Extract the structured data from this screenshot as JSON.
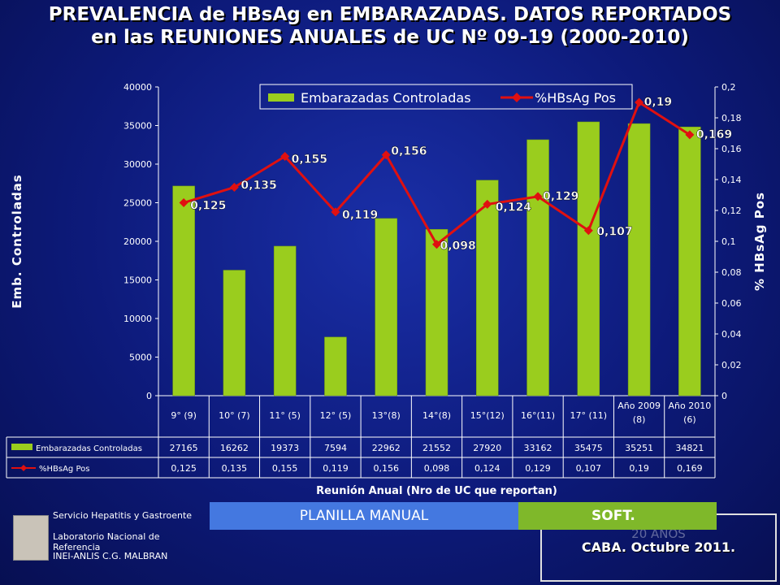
{
  "title_line1": "PREVALENCIA de HBsAg en EMBARAZADAS. DATOS REPORTADOS",
  "title_line2": "en las REUNIONES ANUALES de UC Nº 09-19  (2000-2010)",
  "colors": {
    "bar": "#9acd1e",
    "line": "#e01010",
    "background": "#0d1a7a"
  },
  "chart_data": {
    "type": "bar",
    "categories": [
      "9° (9)",
      "10° (7)",
      "11° (5)",
      "12° (5)",
      "13°(8)",
      "14°(8)",
      "15°(12)",
      "16°(11)",
      "17° (11)",
      "Año 2009 (8)",
      "Año 2010 (6)"
    ],
    "series": [
      {
        "name": "Embarazadas Controladas",
        "type": "bar",
        "axis": "left",
        "values": [
          27165,
          16262,
          19373,
          7594,
          22962,
          21552,
          27920,
          33162,
          35475,
          35251,
          34821
        ]
      },
      {
        "name": "%HBsAg Pos",
        "type": "line",
        "axis": "right",
        "values": [
          0.125,
          0.135,
          0.155,
          0.119,
          0.156,
          0.098,
          0.124,
          0.129,
          0.107,
          0.19,
          0.169
        ]
      }
    ],
    "data_labels": [
      "0,125",
      "0,135",
      "0,155",
      "0,119",
      "0,156",
      "0,098",
      "0,124",
      "0,129",
      "0,107",
      "0,19",
      "0,169"
    ],
    "table_values_bar": [
      "27165",
      "16262",
      "19373",
      "7594",
      "22962",
      "21552",
      "27920",
      "33162",
      "35475",
      "35251",
      "34821"
    ],
    "table_values_line": [
      "0,125",
      "0,135",
      "0,155",
      "0,119",
      "0,156",
      "0,098",
      "0,124",
      "0,129",
      "0,107",
      "0,19",
      "0,169"
    ],
    "xlabel": "Reunión Anual (Nro de UC que reportan)",
    "ylabel": "Emb. Controladas",
    "y2label": "% HBsAg Pos",
    "ylim": [
      0,
      40000
    ],
    "y2lim": [
      0,
      0.2
    ],
    "yticks": [
      "0",
      "5000",
      "10000",
      "15000",
      "20000",
      "25000",
      "30000",
      "35000",
      "40000"
    ],
    "y2ticks": [
      "0",
      "0,02",
      "0,04",
      "0,06",
      "0,08",
      "0,1",
      "0,12",
      "0,14",
      "0,16",
      "0,18",
      "0,2"
    ],
    "legend_position": "top-right"
  },
  "footer": {
    "line1": "Servicio Hepatitis y Gastroente",
    "line2": "Laboratorio Nacional de Referencia",
    "line3": "INEI-ANLIS C.G. MALBRAN",
    "ribbon_manual": "PLANILLA MANUAL",
    "ribbon_soft": "SOFT.",
    "box_hidden": "20  AÑOS",
    "box_text": "CABA.  Octubre 2011."
  }
}
